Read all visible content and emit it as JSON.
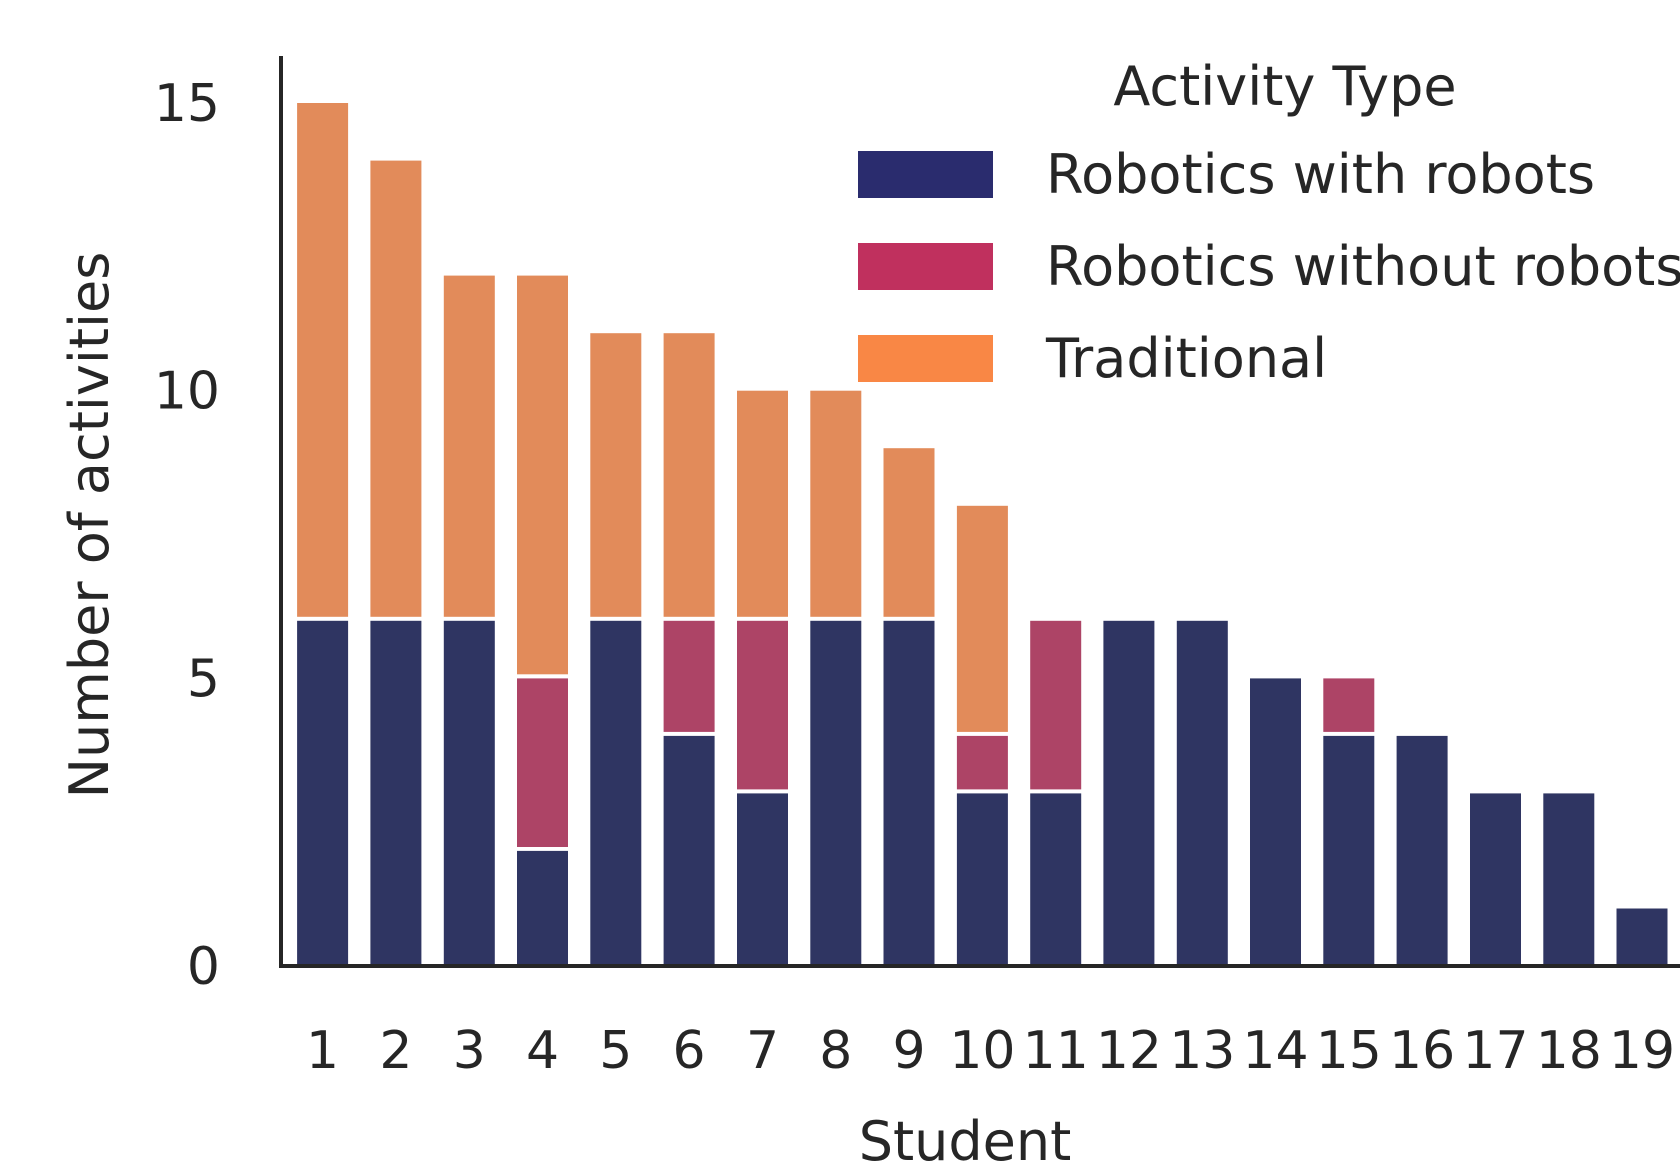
{
  "chart_data": {
    "type": "bar",
    "stacked": true,
    "title": "",
    "xlabel": "Student",
    "ylabel": "Number of activities",
    "categories": [
      "1",
      "2",
      "3",
      "4",
      "5",
      "6",
      "7",
      "8",
      "9",
      "10",
      "11",
      "12",
      "13",
      "14",
      "15",
      "16",
      "17",
      "18",
      "19"
    ],
    "ylim": [
      0,
      15.8
    ],
    "yticks": [
      0,
      5,
      10,
      15
    ],
    "grid": false,
    "legend_title": "Activity Type",
    "legend_position": "top-right",
    "series": [
      {
        "name": "Robotics with robots",
        "color": "#2f3562",
        "legend_color": "#2a2c6e",
        "values": [
          6,
          6,
          6,
          2,
          6,
          4,
          3,
          6,
          6,
          3,
          3,
          6,
          6,
          5,
          4,
          4,
          3,
          3,
          1
        ]
      },
      {
        "name": "Robotics without robots",
        "color": "#ad4466",
        "legend_color": "#c0305e",
        "values": [
          0,
          0,
          0,
          3,
          0,
          2,
          3,
          0,
          0,
          1,
          3,
          0,
          0,
          0,
          1,
          0,
          0,
          0,
          0
        ]
      },
      {
        "name": "Traditional",
        "color": "#e28b5a",
        "legend_color": "#f98745",
        "values": [
          9,
          8,
          6,
          7,
          5,
          5,
          4,
          4,
          3,
          4,
          0,
          0,
          0,
          0,
          0,
          0,
          0,
          0,
          0
        ]
      }
    ]
  }
}
